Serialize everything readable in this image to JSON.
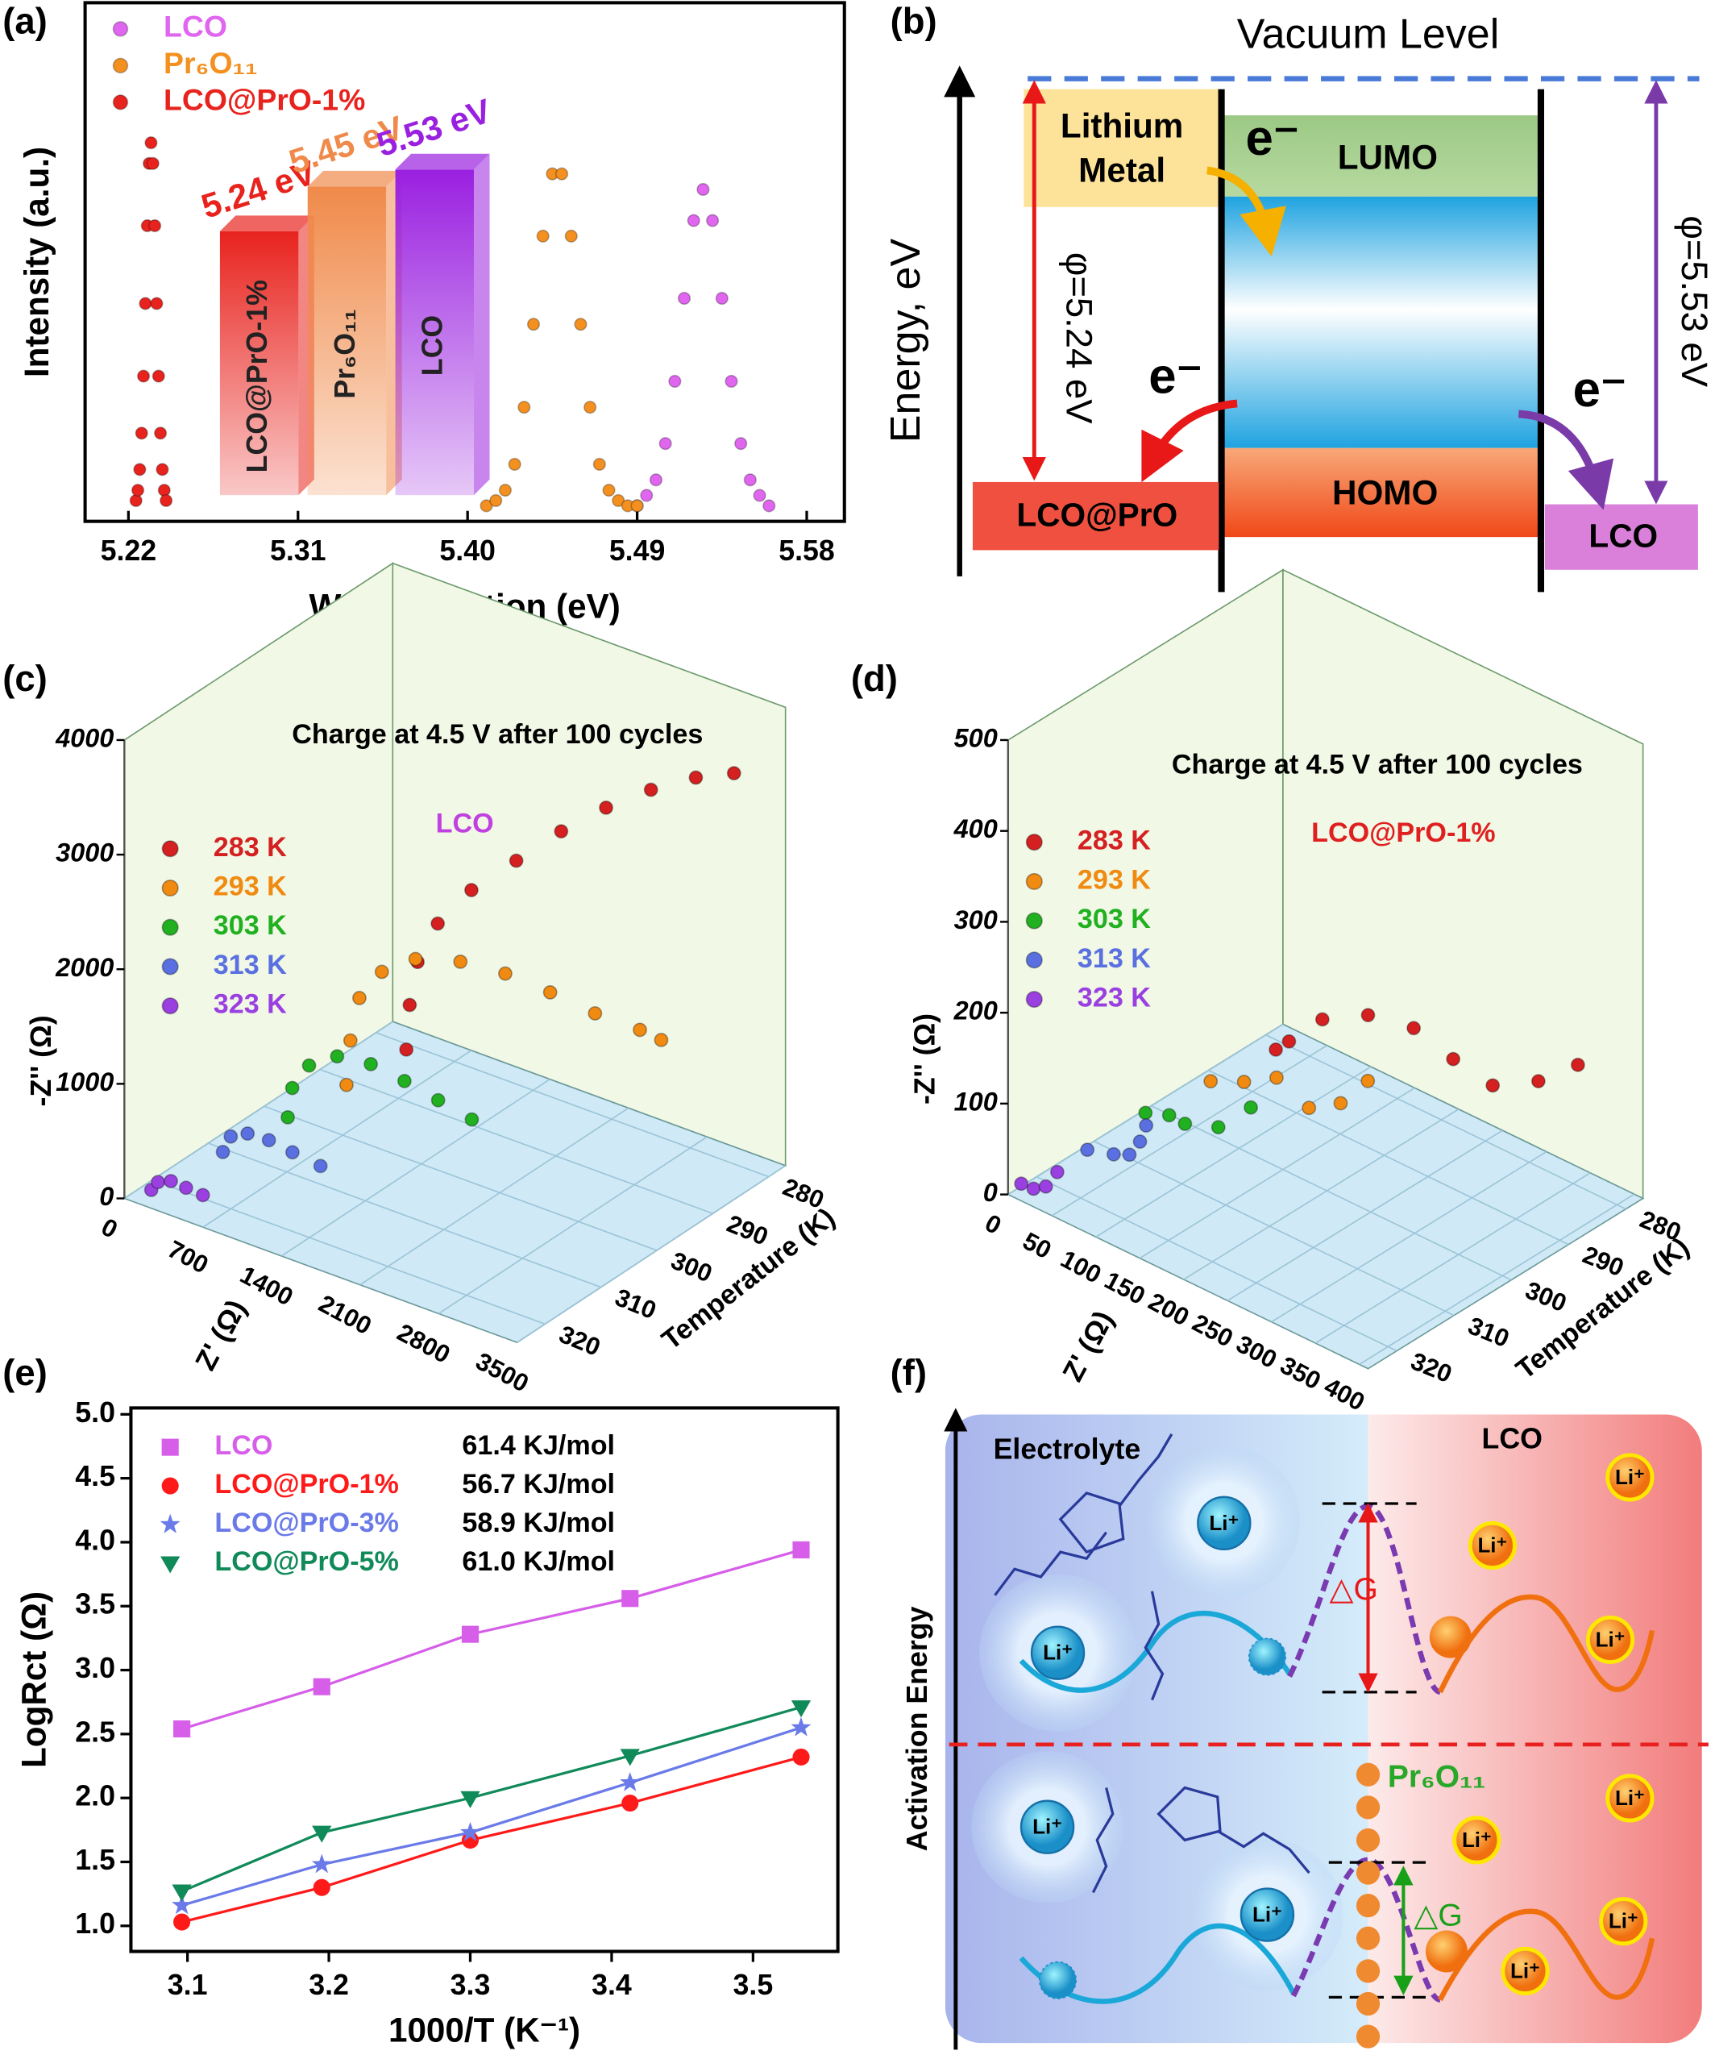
{
  "panel_labels": [
    "(a)",
    "(b)",
    "(c)",
    "(d)",
    "(e)",
    "(f)"
  ],
  "chart_data": [
    {
      "type": "line",
      "xlabel": "Work Function (eV)",
      "ylabel": "Intensity (a.u.)",
      "xlim": [
        5.197,
        5.6
      ],
      "xticks": [
        5.22,
        5.31,
        {
          "value": 5.4,
          "label": "5.40"
        },
        5.49,
        5.58
      ],
      "ylim": [
        0,
        1
      ],
      "legend": "upper left",
      "series": [
        {
          "name": "LCO",
          "color": "#e066f0",
          "x": [
            5.49,
            5.495,
            5.5,
            5.505,
            5.51,
            5.515,
            5.52,
            5.525,
            5.53,
            5.535,
            5.54,
            5.545,
            5.55,
            5.555,
            5.56
          ],
          "values": [
            0.03,
            0.05,
            0.08,
            0.15,
            0.27,
            0.43,
            0.58,
            0.64,
            0.58,
            0.43,
            0.27,
            0.15,
            0.08,
            0.05,
            0.03
          ]
        },
        {
          "name": "Pr₆O₁₁",
          "color": "#f39020",
          "x": [
            5.41,
            5.415,
            5.42,
            5.425,
            5.43,
            5.435,
            5.44,
            5.445,
            5.45,
            5.455,
            5.46,
            5.465,
            5.47,
            5.475,
            5.48,
            5.485,
            5.49
          ],
          "values": [
            0.03,
            0.04,
            0.06,
            0.11,
            0.22,
            0.38,
            0.55,
            0.67,
            0.67,
            0.55,
            0.38,
            0.22,
            0.11,
            0.06,
            0.04,
            0.03,
            0.03
          ]
        },
        {
          "name": "LCO@PrO-1%",
          "color": "#e8231e",
          "x": [
            5.224,
            5.225,
            5.226,
            5.227,
            5.228,
            5.229,
            5.23,
            5.231,
            5.232,
            5.233,
            5.234,
            5.235,
            5.236,
            5.237,
            5.238,
            5.239,
            5.24
          ],
          "values": [
            0.04,
            0.06,
            0.1,
            0.17,
            0.28,
            0.42,
            0.57,
            0.69,
            0.73,
            0.69,
            0.57,
            0.42,
            0.28,
            0.17,
            0.1,
            0.06,
            0.04
          ]
        }
      ],
      "inset": {
        "type": "bar",
        "categories": [
          "LCO@PrO-1%",
          "Pr₆O₁₁",
          "LCO"
        ],
        "values": [
          5.24,
          5.45,
          5.53
        ],
        "value_labels": [
          "5.24 eV",
          "5.45 eV",
          "5.53 eV"
        ],
        "colors": [
          "#e8231e",
          "#f08a4a",
          "#9a20e0"
        ],
        "ylim": [
          4.0,
          5.6
        ]
      }
    },
    {
      "type": "scatter3d",
      "title": "Charge at 4.5 V after 100 cycles",
      "annotation": "LCO",
      "xlabel": "Z' (Ω)",
      "ylabel": "Temperature (K)",
      "zlabel": "-Z'' (Ω)",
      "xlim": [
        0,
        3500
      ],
      "xticks": [
        0,
        700,
        1400,
        2100,
        2800,
        3500
      ],
      "ylim": [
        277,
        325
      ],
      "yticks": [
        280,
        290,
        300,
        310,
        320
      ],
      "zlim": [
        0,
        4000
      ],
      "zticks": [
        0,
        1000,
        2000,
        3000,
        4000
      ],
      "series": [
        {
          "name": "283 K",
          "color": "#d42020",
          "temperature": 283,
          "x": [
            420,
            450,
            520,
            700,
            1000,
            1400,
            1800,
            2200,
            2600,
            3000,
            3340
          ],
          "values": [
            100,
            500,
            900,
            1300,
            1700,
            2100,
            2500,
            2850,
            3150,
            3400,
            3560
          ]
        },
        {
          "name": "293 K",
          "color": "#f08a10",
          "temperature": 293,
          "x": [
            385,
            420,
            500,
            700,
            1000,
            1400,
            1800,
            2200,
            2600,
            3000,
            3190
          ],
          "values": [
            100,
            500,
            900,
            1200,
            1420,
            1540,
            1580,
            1560,
            1520,
            1520,
            1500
          ]
        },
        {
          "name": "303 K",
          "color": "#20b020",
          "temperature": 303,
          "x": [
            360,
            400,
            550,
            800,
            1100,
            1400,
            1700,
            2000
          ],
          "values": [
            130,
            400,
            650,
            820,
            860,
            820,
            760,
            700
          ]
        },
        {
          "name": "313 K",
          "color": "#5a70e0",
          "temperature": 313,
          "x": [
            280,
            350,
            500,
            690,
            900,
            1150
          ],
          "values": [
            120,
            280,
            360,
            370,
            340,
            310
          ]
        },
        {
          "name": "323 K",
          "color": "#9a40e0",
          "temperature": 323,
          "x": [
            140,
            200,
            315,
            450,
            600
          ],
          "values": [
            60,
            150,
            200,
            190,
            180
          ]
        }
      ]
    },
    {
      "type": "scatter3d",
      "title": "Charge at 4.5 V after 100 cycles",
      "annotation": "LCO@PrO-1%",
      "xlabel": "Z' (Ω)",
      "ylabel": "Temperature (K)",
      "zlabel": "-Z'' (Ω)",
      "xlim": [
        0,
        410
      ],
      "xticks": [
        0,
        50,
        100,
        150,
        200,
        250,
        300,
        350,
        400
      ],
      "ylim": [
        277,
        325
      ],
      "yticks": [
        280,
        290,
        300,
        310,
        320
      ],
      "zlim": [
        0,
        500
      ],
      "zticks": [
        0,
        100,
        200,
        300,
        400,
        500
      ],
      "series": [
        {
          "name": "283 K",
          "color": "#d42020",
          "temperature": 283,
          "x": [
            31,
            46,
            84,
            136,
            188,
            233,
            278,
            330,
            375
          ],
          "values": [
            10,
            26,
            68,
            97,
            107,
            94,
            86,
            115,
            154
          ]
        },
        {
          "name": "293 K",
          "color": "#f08a10",
          "temperature": 293,
          "x": [
            22,
            60,
            97,
            134,
            170,
            201
          ],
          "values": [
            10,
            27,
            49,
            33,
            55,
            94
          ]
        },
        {
          "name": "303 K",
          "color": "#20b020",
          "temperature": 303,
          "x": [
            13,
            40,
            58,
            96,
            133
          ],
          "values": [
            10,
            20,
            19,
            33,
            72
          ]
        },
        {
          "name": "313 K",
          "color": "#5a70e0",
          "temperature": 313,
          "x": [
            12,
            42,
            60,
            72,
            79
          ],
          "values": [
            8,
            17,
            25,
            45,
            66
          ]
        },
        {
          "name": "323 K",
          "color": "#9a40e0",
          "temperature": 323,
          "x": [
            2,
            16,
            30,
            43
          ],
          "values": [
            5,
            6,
            15,
            37
          ]
        }
      ]
    },
    {
      "type": "scatter",
      "xlabel": "1000/T (K⁻¹)",
      "ylabel": "LogRct (Ω)",
      "xlim": [
        3.06,
        3.56
      ],
      "xticks": [
        3.1,
        3.2,
        3.3,
        3.4,
        3.5
      ],
      "ylim": [
        0.8,
        5.05
      ],
      "yticks": [
        {
          "value": 1,
          "label": "1.0"
        },
        1.5,
        {
          "value": 2,
          "label": "2.0"
        },
        2.5,
        {
          "value": 3,
          "label": "3.0"
        },
        3.5,
        {
          "value": 4,
          "label": "4.0"
        },
        4.5,
        {
          "value": 5,
          "label": "5.0"
        }
      ],
      "legend": "upper left",
      "series": [
        {
          "name": "LCO",
          "energy": "61.4 KJ/mol",
          "color": "#d65ee8",
          "marker": "square",
          "x": [
            3.096,
            3.195,
            3.3,
            3.413,
            3.534
          ],
          "values": [
            2.54,
            2.87,
            3.28,
            3.56,
            3.94
          ]
        },
        {
          "name": "LCO@PrO-1%",
          "energy": "56.7 KJ/mol",
          "color": "#ff1a1a",
          "marker": "circle",
          "x": [
            3.096,
            3.195,
            3.3,
            3.413,
            3.534
          ],
          "values": [
            1.03,
            1.3,
            1.67,
            1.96,
            2.32
          ]
        },
        {
          "name": "LCO@PrO-3%",
          "energy": "58.9 KJ/mol",
          "color": "#6a7ae8",
          "marker": "star",
          "x": [
            3.096,
            3.195,
            3.3,
            3.413,
            3.534
          ],
          "values": [
            1.16,
            1.48,
            1.73,
            2.12,
            2.55
          ]
        },
        {
          "name": "LCO@PrO-5%",
          "energy": "61.0 KJ/mol",
          "color": "#118a5a",
          "marker": "triangle-down",
          "x": [
            3.096,
            3.195,
            3.3,
            3.413,
            3.534
          ],
          "values": [
            1.27,
            1.73,
            2.0,
            2.33,
            2.71
          ]
        }
      ]
    }
  ],
  "diagrams": {
    "b": {
      "vacuum": "Vacuum Level",
      "axis": "Energy, eV",
      "metal": [
        "Lithium",
        "Metal"
      ],
      "lumo": "LUMO",
      "homo": "HOMO",
      "left": "LCO@PrO",
      "right": "LCO",
      "electron": "e⁻",
      "phi_left": "φ=5.24 eV",
      "phi_right": "φ=5.53 eV"
    },
    "f": {
      "axis": "Activation Energy",
      "left": "Electrolyte",
      "right": "LCO",
      "ion": "Li⁺",
      "barrier": "△G",
      "coating": "Pr₆O₁₁"
    }
  }
}
